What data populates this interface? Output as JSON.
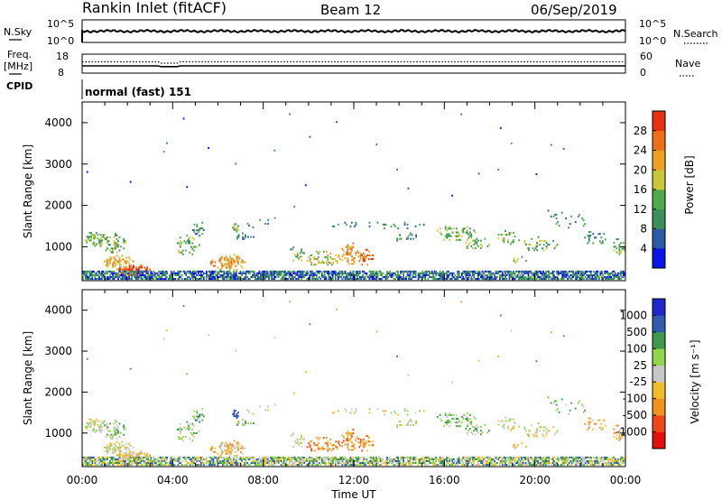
{
  "header": {
    "station": "Rankin Inlet (fitACF)",
    "beam": "Beam 12",
    "date": "06/Sep/2019"
  },
  "noise_panel": {
    "left_label": "N.Sky",
    "right_label": "N.Search",
    "left_ticks": [
      "10^5",
      "10^0"
    ],
    "right_ticks": [
      "10^5",
      "10^0"
    ]
  },
  "freq_panel": {
    "left_label_1": "Freq.",
    "left_label_2": "[MHz]",
    "right_label": "Nave",
    "left_ticks": [
      "18",
      "8"
    ],
    "right_ticks": [
      "60",
      "0"
    ]
  },
  "cpid_panel": {
    "label": "CPID",
    "text": "normal (fast) 151"
  },
  "colors": {
    "power_scale": [
      "#0a14e6",
      "#2a5aa8",
      "#3a8f5a",
      "#4fa84a",
      "#c8c83a",
      "#f0a020",
      "#ef6f18",
      "#e63010"
    ],
    "velocity_scale": [
      "#e01010",
      "#ef4818",
      "#f29020",
      "#f2bd2a",
      "#c7c7c7",
      "#8fd64a",
      "#3c9a4a",
      "#2f5cad",
      "#1e28c8"
    ]
  },
  "chart_data": [
    {
      "type": "heatmap",
      "panel": "power",
      "ylabel": "Slant Range [km]",
      "ylim": [
        180,
        4500
      ],
      "y_ticks": [
        1000,
        2000,
        3000,
        4000
      ],
      "y_tick_labels": [
        "1000",
        "2000",
        "3000",
        "4000"
      ],
      "x_tick_labels": [
        "00:00",
        "04:00",
        "08:00",
        "12:00",
        "16:00",
        "20:00",
        "00:00"
      ],
      "xlim_hours": [
        0,
        24
      ],
      "colorbar_label": "Power [dB]",
      "colorbar_ticks": [
        "4",
        "8",
        "12",
        "16",
        "20",
        "24",
        "28"
      ],
      "colorbar_range": [
        0,
        32
      ]
    },
    {
      "type": "heatmap",
      "panel": "velocity",
      "ylabel": "Slant Range [km]",
      "xlabel": "Time UT",
      "ylim": [
        180,
        4500
      ],
      "y_ticks": [
        1000,
        2000,
        3000,
        4000
      ],
      "y_tick_labels": [
        "1000",
        "2000",
        "3000",
        "4000"
      ],
      "x_tick_labels": [
        "00:00",
        "04:00",
        "08:00",
        "12:00",
        "16:00",
        "20:00",
        "00:00"
      ],
      "xlim_hours": [
        0,
        24
      ],
      "colorbar_label": "Velocity [m s⁻¹]",
      "colorbar_ticks": [
        "-1000",
        "-500",
        "-100",
        "-25",
        "25",
        "100",
        "500",
        "1000"
      ]
    }
  ]
}
